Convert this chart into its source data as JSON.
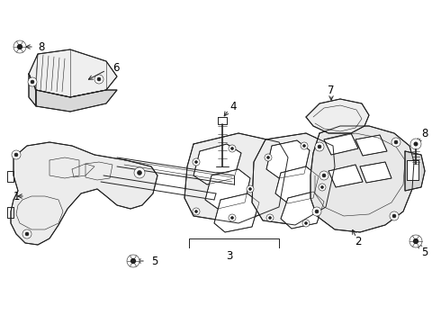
{
  "bg_color": "#ffffff",
  "line_color": "#222222",
  "fig_width": 4.9,
  "fig_height": 3.6,
  "dpi": 100,
  "part_lw": 0.7,
  "thin_lw": 0.4,
  "label_fs": 8.5
}
